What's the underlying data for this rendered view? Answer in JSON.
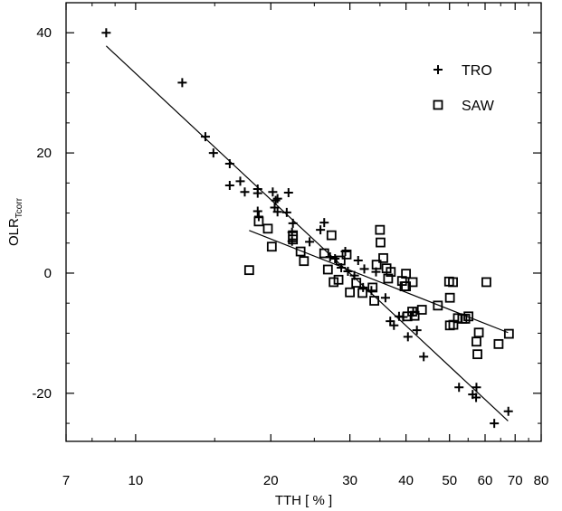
{
  "chart_data": {
    "type": "scatter",
    "xlabel": "TTH [ % ]",
    "ylabel_main": "OLR",
    "ylabel_sub": "Tcorr",
    "x_scale": "log",
    "xlim": [
      7,
      80
    ],
    "ylim": [
      -28,
      45
    ],
    "x_ticks": [
      7,
      10,
      20,
      30,
      40,
      50,
      60,
      70,
      80
    ],
    "x_tick_labels": [
      "7",
      "10",
      "20",
      "30",
      "40",
      "50",
      "60",
      "70",
      "80"
    ],
    "y_ticks": [
      -20,
      0,
      20,
      40
    ],
    "y_tick_labels": [
      "-20",
      "0",
      "20",
      "40"
    ],
    "legend_position": "top-right",
    "grid": false,
    "series": [
      {
        "name": "TRO",
        "marker": "plus",
        "points": [
          [
            8.6,
            40
          ],
          [
            12.7,
            31.7
          ],
          [
            14.3,
            22.7
          ],
          [
            14.9,
            20
          ],
          [
            16.2,
            18.2
          ],
          [
            16.2,
            14.6
          ],
          [
            17.1,
            15.3
          ],
          [
            17.5,
            13.5
          ],
          [
            18.7,
            14
          ],
          [
            18.7,
            13.3
          ],
          [
            18.7,
            10.3
          ],
          [
            18.8,
            9.4
          ],
          [
            20.2,
            13.5
          ],
          [
            20.5,
            12.1
          ],
          [
            20.7,
            12.4
          ],
          [
            20.4,
            10.9
          ],
          [
            20.7,
            10.2
          ],
          [
            21.7,
            10.1
          ],
          [
            21.9,
            13.4
          ],
          [
            22.4,
            8.3
          ],
          [
            22.3,
            6.8
          ],
          [
            22.3,
            5.3
          ],
          [
            24.4,
            5.2
          ],
          [
            25.8,
            7.2
          ],
          [
            26.3,
            8.4
          ],
          [
            27.1,
            2.7
          ],
          [
            27.8,
            2.4
          ],
          [
            28.7,
            0.9
          ],
          [
            29.3,
            3.6
          ],
          [
            29.7,
            0.3
          ],
          [
            30.7,
            -0.4
          ],
          [
            31.3,
            2.1
          ],
          [
            32.1,
            -2.4
          ],
          [
            32.3,
            0.7
          ],
          [
            33.5,
            -2.9
          ],
          [
            34.3,
            0.2
          ],
          [
            36.0,
            -4.1
          ],
          [
            36.9,
            -8
          ],
          [
            37.6,
            -8.7
          ],
          [
            38.6,
            -7.2
          ],
          [
            39.4,
            -7.3
          ],
          [
            40.4,
            -10.6
          ],
          [
            41.5,
            -6.5
          ],
          [
            42.3,
            -9.5
          ],
          [
            43.8,
            -13.9
          ],
          [
            52.5,
            -19
          ],
          [
            56.3,
            -20.2
          ],
          [
            57.4,
            -19
          ],
          [
            57.3,
            -20.7
          ],
          [
            62.9,
            -25
          ],
          [
            67.6,
            -23
          ]
        ]
      },
      {
        "name": "SAW",
        "marker": "square",
        "points": [
          [
            17.9,
            0.5
          ],
          [
            18.8,
            8.6
          ],
          [
            19.7,
            7.4
          ],
          [
            20.1,
            4.4
          ],
          [
            22.4,
            6.3
          ],
          [
            22.4,
            5.6
          ],
          [
            23.3,
            3.6
          ],
          [
            23.7,
            2
          ],
          [
            26.3,
            3.3
          ],
          [
            26.8,
            0.6
          ],
          [
            27.3,
            6.3
          ],
          [
            27.6,
            -1.5
          ],
          [
            28.3,
            -1.1
          ],
          [
            28.6,
            2.1
          ],
          [
            29.5,
            3.1
          ],
          [
            30.0,
            -3.2
          ],
          [
            31.0,
            -1.6
          ],
          [
            32.0,
            -3.3
          ],
          [
            33.7,
            -2.4
          ],
          [
            34.0,
            -4.6
          ],
          [
            34.4,
            1.4
          ],
          [
            35.0,
            7.2
          ],
          [
            35.1,
            5.1
          ],
          [
            35.6,
            2.5
          ],
          [
            36.2,
            0.8
          ],
          [
            36.5,
            -0.9
          ],
          [
            37.0,
            0.2
          ],
          [
            39.2,
            -1.3
          ],
          [
            39.7,
            -2.2
          ],
          [
            40.0,
            -2.2
          ],
          [
            40.0,
            -0.1
          ],
          [
            40.3,
            -7.2
          ],
          [
            41.3,
            -6.4
          ],
          [
            41.4,
            -1.5
          ],
          [
            41.8,
            -7.1
          ],
          [
            43.4,
            -6.1
          ],
          [
            47.1,
            -5.4
          ],
          [
            49.9,
            -1.4
          ],
          [
            50.1,
            -4.1
          ],
          [
            50.1,
            -8.7
          ],
          [
            50.9,
            -1.5
          ],
          [
            51.0,
            -8.6
          ],
          [
            52.2,
            -7.5
          ],
          [
            53.4,
            -7.6
          ],
          [
            54.2,
            -7.6
          ],
          [
            55.1,
            -7.2
          ],
          [
            57.4,
            -11.4
          ],
          [
            57.7,
            -13.5
          ],
          [
            58.1,
            -9.9
          ],
          [
            60.4,
            -1.5
          ],
          [
            64.3,
            -11.8
          ],
          [
            67.8,
            -10.1
          ]
        ]
      }
    ],
    "fit_lines": [
      {
        "series": "TRO",
        "from": [
          8.6,
          37.8
        ],
        "to": [
          67.5,
          -24.6
        ]
      },
      {
        "series": "SAW",
        "from": [
          17.9,
          7.1
        ],
        "to": [
          67.5,
          -9.9
        ]
      }
    ]
  }
}
